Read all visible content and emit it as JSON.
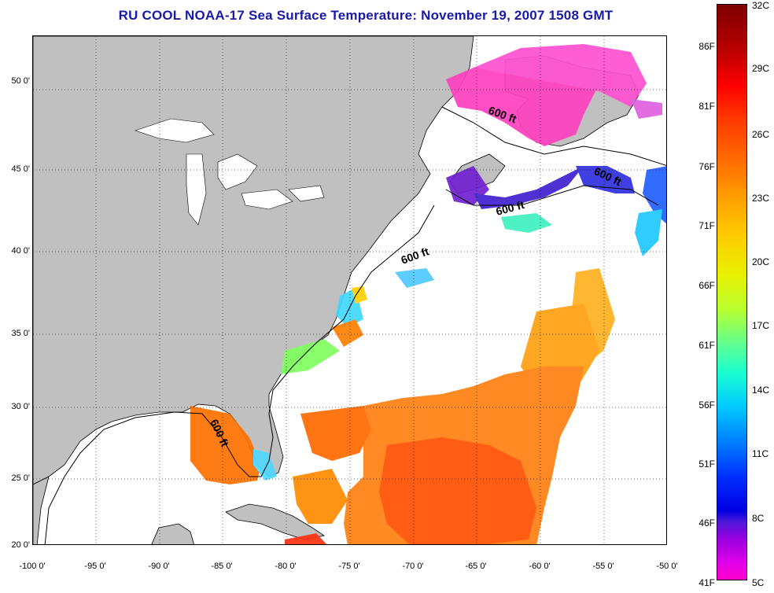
{
  "title": "RU COOL  NOAA-17  Sea Surface Temperature:  November 19, 2007 1508 GMT",
  "map": {
    "lon_range": [
      -100,
      -50
    ],
    "lat_range": [
      20,
      52.5
    ],
    "grid": true,
    "latitude_ticks": [
      "50 0'",
      "45 0'",
      "40 0'",
      "35 0'",
      "30 0'",
      "25 0'",
      "20 0'"
    ],
    "longitude_ticks": [
      "-100 0'",
      "-95 0'",
      "-90 0'",
      "-85 0'",
      "-80 0'",
      "-75 0'",
      "-70 0'",
      "-65 0'",
      "-60 0'",
      "-55 0'",
      "-50 0'"
    ],
    "contour_labels": [
      "600 ft",
      "600 ft",
      "600 ft",
      "600 ft",
      "600 ft"
    ],
    "colors": {
      "land": "#c0c0c0",
      "no_data": "#ffffff"
    }
  },
  "colorbar": {
    "fahrenheit_labels": [
      "86F",
      "81F",
      "76F",
      "71F",
      "66F",
      "61F",
      "56F",
      "51F",
      "46F",
      "41F"
    ],
    "celsius_labels": [
      "32C",
      "29C",
      "26C",
      "23C",
      "20C",
      "17C",
      "14C",
      "11C",
      "8C",
      "5C"
    ]
  }
}
